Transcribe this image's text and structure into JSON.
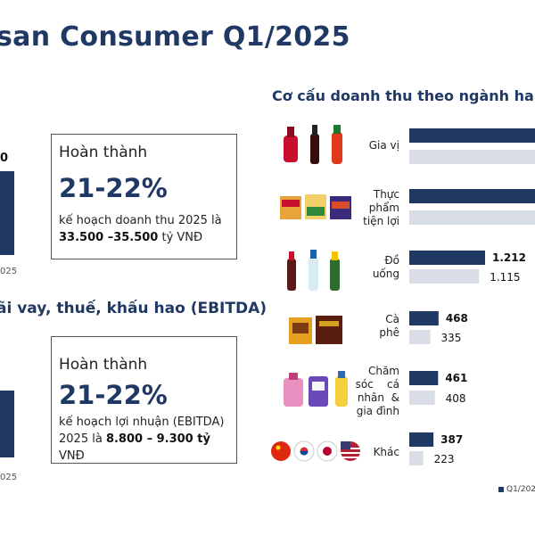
{
  "title": "san Consumer Q1/2025",
  "left": {
    "ebitda_heading": "ãi vay, thuế, khấu hao (EBITDA)",
    "year_label_top": "025",
    "year_label_bottom": "025",
    "callout_revenue": {
      "head": "Hoàn thành",
      "pct": "21-22%",
      "note_pre": "kế hoạch doanh thu 2025 là ",
      "note_bold": "33.500 –35.500",
      "note_post": " tỷ VNĐ"
    },
    "callout_ebitda": {
      "head": "Hoàn thành",
      "pct": "21-22%",
      "note_pre": "kế hoạch lợi nhuận (EBITDA) 2025 là ",
      "note_bold": "8.800 – 9.300 tỷ",
      "note_post": " VNĐ"
    },
    "top_value_fragment": "0"
  },
  "right": {
    "heading": "Cơ cấu doanh thu theo ngành ha",
    "legend_label": "Q1/202"
  },
  "colors": {
    "current": "#1f3864",
    "previous": "#d9dde6",
    "accent": "#1f3864"
  },
  "chart_data": {
    "type": "bar",
    "orientation": "horizontal",
    "title": "Cơ cấu doanh thu theo ngành ha",
    "categories": [
      {
        "label": [
          "Gia vị"
        ],
        "icons": "sauce-bottles-icon"
      },
      {
        "label": [
          "Thực",
          "phẩm",
          "tiện lợi"
        ],
        "icons": "instant-noodles-icon"
      },
      {
        "label": [
          "Đồ",
          "uống"
        ],
        "icons": "beverage-bottles-icon"
      },
      {
        "label": [
          "Cà",
          "phê"
        ],
        "icons": "coffee-packs-icon"
      },
      {
        "label": [
          "Chăm",
          "sóc",
          "cá",
          "nhân",
          "&",
          "gia đình"
        ],
        "icons": "household-care-icon"
      },
      {
        "label": [
          "Khác"
        ],
        "icons": "country-flags-icon"
      }
    ],
    "series": [
      {
        "name": "Q1/202",
        "values": [
          null,
          null,
          1212,
          468,
          461,
          387
        ],
        "labels": [
          "",
          "",
          "1.212",
          "468",
          "461",
          "387"
        ]
      },
      {
        "values": [
          null,
          null,
          1115,
          335,
          408,
          223
        ],
        "labels": [
          "",
          "",
          "1.115",
          "335",
          "408",
          "223"
        ]
      }
    ],
    "value_scale_max": 1400,
    "legend_position": "bottom-right"
  }
}
